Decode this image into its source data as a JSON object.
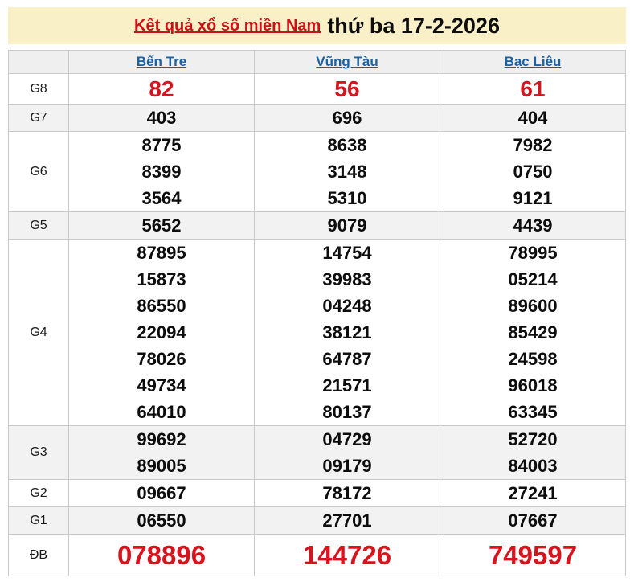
{
  "title": {
    "link_text": "Kết quả xổ số miền Nam",
    "date_text": "thứ ba 17-2-2026"
  },
  "colors": {
    "banner_bg": "#faf0c8",
    "accent_red": "#d6141e",
    "link_blue": "#1a62a8",
    "stripe_gray": "#f2f2f2",
    "border_gray": "#c9c9c9"
  },
  "table": {
    "provinces": [
      "Bến Tre",
      "Vũng Tàu",
      "Bạc Liêu"
    ],
    "rows": [
      {
        "label": "G8",
        "type": "red-medium",
        "cells": [
          [
            "82"
          ],
          [
            "56"
          ],
          [
            "61"
          ]
        ]
      },
      {
        "label": "G7",
        "cells": [
          [
            "403"
          ],
          [
            "696"
          ],
          [
            "404"
          ]
        ]
      },
      {
        "label": "G6",
        "cells": [
          [
            "8775",
            "8399",
            "3564"
          ],
          [
            "8638",
            "3148",
            "5310"
          ],
          [
            "7982",
            "0750",
            "9121"
          ]
        ]
      },
      {
        "label": "G5",
        "cells": [
          [
            "5652"
          ],
          [
            "9079"
          ],
          [
            "4439"
          ]
        ]
      },
      {
        "label": "G4",
        "cells": [
          [
            "87895",
            "15873",
            "86550",
            "22094",
            "78026",
            "49734",
            "64010"
          ],
          [
            "14754",
            "39983",
            "04248",
            "38121",
            "64787",
            "21571",
            "80137"
          ],
          [
            "78995",
            "05214",
            "89600",
            "85429",
            "24598",
            "96018",
            "63345"
          ]
        ]
      },
      {
        "label": "G3",
        "cells": [
          [
            "99692",
            "89005"
          ],
          [
            "04729",
            "09179"
          ],
          [
            "52720",
            "84003"
          ]
        ]
      },
      {
        "label": "G2",
        "cells": [
          [
            "09667"
          ],
          [
            "78172"
          ],
          [
            "27241"
          ]
        ]
      },
      {
        "label": "G1",
        "cells": [
          [
            "06550"
          ],
          [
            "27701"
          ],
          [
            "07667"
          ]
        ]
      },
      {
        "label": "ĐB",
        "type": "red-large",
        "cells": [
          [
            "078896"
          ],
          [
            "144726"
          ],
          [
            "749597"
          ]
        ]
      }
    ]
  }
}
